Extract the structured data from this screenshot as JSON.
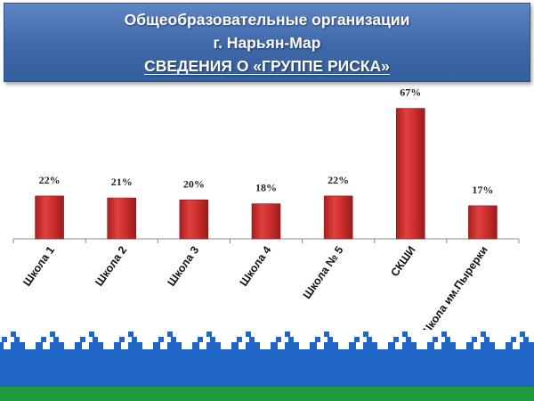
{
  "header": {
    "line1": "Общеобразовательные организации",
    "line2": "г. Нарьян-Мар",
    "line3": "СВЕДЕНИЯ О «ГРУППЕ РИСКА»"
  },
  "colors": {
    "banner": "#4470b2",
    "bar": "#d0302f",
    "flag_blue": "#1f66c7",
    "flag_green": "#1f9a3b",
    "ornament_white": "#ffffff"
  },
  "chart_data": {
    "type": "bar",
    "categories": [
      "Школа 1",
      "Школа 2",
      "Школа 3",
      "Школа 4",
      "Школа № 5",
      "СКШИ",
      "Школа им.Пырерки"
    ],
    "values": [
      22,
      21,
      20,
      18,
      22,
      67,
      17
    ],
    "value_labels": [
      "22%",
      "21%",
      "20%",
      "18%",
      "22%",
      "67%",
      "17%"
    ],
    "title": "",
    "xlabel": "",
    "ylabel": "",
    "ylim": [
      0,
      70
    ],
    "grid": false,
    "legend": "none"
  }
}
